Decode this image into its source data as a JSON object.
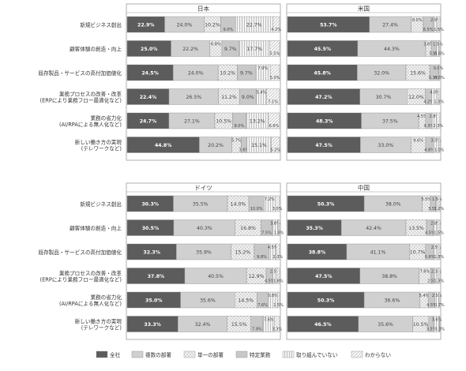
{
  "chart_data": {
    "type": "bar",
    "stacked": true,
    "orientation": "horizontal",
    "value_suffix": "%",
    "categories": [
      "新規ビジネス創出",
      "顧客体験の創造・向上",
      "既存製品・サービスの高付加価値化",
      "業務プロセスの改善・改革\n(ERPにより業務フロー最適化など)",
      "業務の省力化\n(AI/RPAによる無人化など)",
      "新しい働き方の実現\n(テレワークなど)"
    ],
    "legend": [
      "全社",
      "複数の部署",
      "単一の部署",
      "特定業務",
      "取り組んでいない",
      "わからない"
    ],
    "colors": [
      "#5c5c5c",
      "#d0d0d0",
      "#e2e2e2",
      "#c8c8c8",
      "#eaeaea",
      "#f3f3f3"
    ],
    "panels": [
      {
        "title": "日本",
        "values": [
          [
            22.9,
            24.0,
            10.2,
            9.0,
            22.7,
            4.2
          ],
          [
            25.0,
            22.2,
            6.8,
            9.7,
            17.7,
            5.5
          ],
          [
            24.5,
            24.0,
            10.2,
            9.7,
            7.9,
            5.0
          ],
          [
            22.4,
            26.5,
            11.2,
            9.0,
            5.4,
            7.1
          ],
          [
            24.7,
            27.1,
            10.5,
            8.0,
            13.2,
            6.6
          ],
          [
            44.8,
            20.2,
            5.7,
            3.6,
            15.1,
            5.2
          ]
        ]
      },
      {
        "title": "米国",
        "values": [
          [
            53.7,
            27.4,
            8.0,
            6.5,
            2.9,
            1.5
          ],
          [
            45.5,
            44.3,
            3.6,
            3.5,
            1.5,
            0.6
          ],
          [
            45.8,
            32.0,
            15.6,
            5.3,
            0.8,
            0.6
          ],
          [
            47.2,
            30.7,
            12.0,
            4.2,
            4.0,
            1.3
          ],
          [
            48.3,
            37.5,
            4.5,
            4.3,
            2.8,
            2.3
          ],
          [
            47.5,
            33.0,
            9.6,
            4.8,
            3.5,
            1.0
          ]
        ]
      },
      {
        "title": "ドイツ",
        "values": [
          [
            30.3,
            35.5,
            14.0,
            10.0,
            7.2,
            3.0
          ],
          [
            30.5,
            40.3,
            16.8,
            7.5,
            3.8,
            1.0
          ],
          [
            32.3,
            35.9,
            15.2,
            9.8,
            4.5,
            2.3
          ],
          [
            37.8,
            40.5,
            12.9,
            4.5,
            2.5,
            1.8
          ],
          [
            35.0,
            35.6,
            14.5,
            7.6,
            5.8,
            1.5
          ],
          [
            33.3,
            32.4,
            15.5,
            7.9,
            7.6,
            3.3
          ]
        ]
      },
      {
        "title": "中国",
        "values": [
          [
            50.3,
            38.0,
            5.5,
            3.5,
            1.5,
            1.2
          ],
          [
            35.3,
            42.4,
            13.5,
            4.5,
            2.8,
            1.5
          ],
          [
            38.8,
            41.1,
            10.7,
            5.6,
            2.5,
            1.3
          ],
          [
            47.5,
            38.8,
            7.6,
            2.5,
            2.3,
            1.3
          ],
          [
            50.3,
            36.6,
            5.4,
            4.5,
            2.5,
            0.7
          ],
          [
            46.5,
            35.6,
            10.5,
            3.5,
            3.6,
            0.3
          ]
        ]
      }
    ]
  }
}
